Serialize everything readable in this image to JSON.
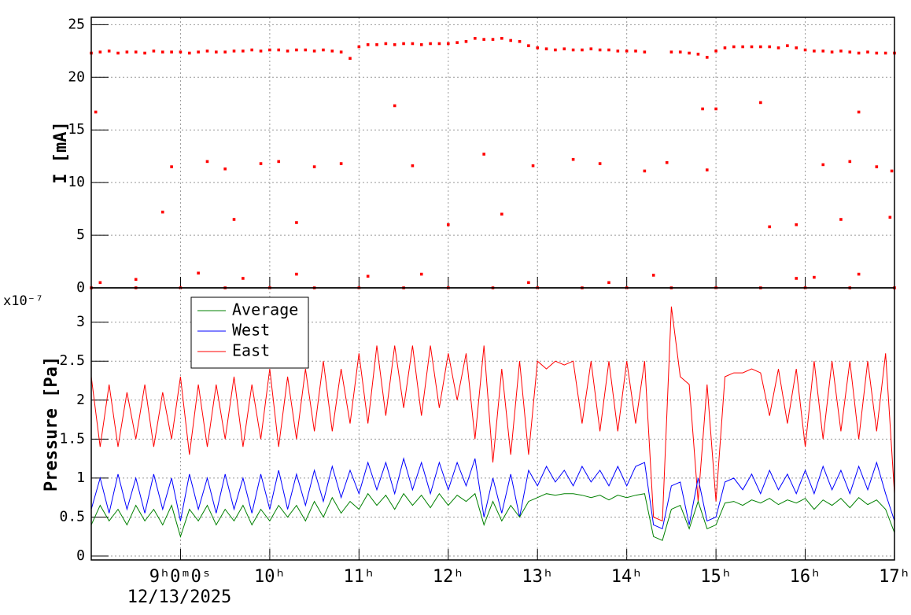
{
  "chart_data": [
    {
      "type": "scatter",
      "ylabel": "I [mA]",
      "color": "#ff0000",
      "xlim": [
        8,
        17
      ],
      "ylim": [
        0,
        25.7
      ],
      "yticks": [
        0,
        5,
        10,
        15,
        20,
        25
      ],
      "grid": true,
      "x": [
        8,
        8.1,
        8.2,
        8.3,
        8.4,
        8.5,
        8.6,
        8.7,
        8.8,
        8.9,
        9,
        9.1,
        9.2,
        9.3,
        9.4,
        9.5,
        9.6,
        9.7,
        9.8,
        9.9,
        10,
        10.1,
        10.2,
        10.3,
        10.4,
        10.5,
        10.6,
        10.7,
        10.8,
        10.9,
        11,
        11.1,
        11.2,
        11.3,
        11.4,
        11.5,
        11.6,
        11.7,
        11.8,
        11.9,
        12,
        12.1,
        12.2,
        12.3,
        12.4,
        12.5,
        12.6,
        12.7,
        12.8,
        12.9,
        13,
        13.1,
        13.2,
        13.3,
        13.4,
        13.5,
        13.6,
        13.7,
        13.8,
        13.9,
        14,
        14.1,
        14.2,
        14.5,
        14.6,
        14.7,
        14.8,
        14.9,
        15,
        15.1,
        15.2,
        15.3,
        15.4,
        15.5,
        15.6,
        15.7,
        15.8,
        15.9,
        16,
        16.1,
        16.2,
        16.3,
        16.4,
        16.5,
        16.6,
        16.7,
        16.8,
        16.9,
        17,
        8.05,
        8.8,
        8.9,
        9.3,
        9.5,
        9.6,
        9.9,
        10.1,
        10.3,
        10.5,
        10.8,
        11.4,
        11.6,
        12,
        12.4,
        12.6,
        12.95,
        13.4,
        13.7,
        14.2,
        14.45,
        14.85,
        14.9,
        15,
        15.5,
        15.6,
        15.9,
        16.2,
        16.4,
        16.5,
        16.6,
        16.8,
        16.95,
        16.97,
        8.1,
        8.5,
        9.2,
        9.7,
        10.3,
        11.1,
        11.7,
        12.9,
        13.8,
        14.3,
        15.9,
        16.1,
        16.6,
        8,
        8.5,
        9,
        9.5,
        10,
        10.5,
        11,
        11.5,
        12,
        12.5,
        13,
        13.5,
        14,
        14.5,
        15,
        15.5,
        16,
        16.5,
        17
      ],
      "values": [
        22.3,
        22.4,
        22.5,
        22.3,
        22.4,
        22.4,
        22.3,
        22.5,
        22.4,
        22.4,
        22.4,
        22.3,
        22.4,
        22.5,
        22.4,
        22.4,
        22.5,
        22.5,
        22.6,
        22.5,
        22.6,
        22.6,
        22.5,
        22.6,
        22.6,
        22.5,
        22.6,
        22.5,
        22.4,
        21.8,
        22.9,
        23.1,
        23.1,
        23.2,
        23.1,
        23.2,
        23.2,
        23.1,
        23.2,
        23.2,
        23.2,
        23.3,
        23.4,
        23.7,
        23.6,
        23.6,
        23.7,
        23.5,
        23.4,
        23.0,
        22.8,
        22.7,
        22.6,
        22.7,
        22.6,
        22.6,
        22.7,
        22.6,
        22.6,
        22.5,
        22.5,
        22.5,
        22.4,
        22.4,
        22.4,
        22.3,
        22.2,
        21.9,
        22.5,
        22.8,
        22.9,
        22.9,
        22.9,
        22.9,
        22.9,
        22.8,
        23.0,
        22.8,
        22.6,
        22.5,
        22.5,
        22.4,
        22.5,
        22.4,
        22.3,
        22.4,
        22.3,
        22.3,
        22.3,
        16.7,
        7.2,
        11.5,
        12,
        11.3,
        6.5,
        11.8,
        12,
        6.2,
        11.5,
        11.8,
        17.3,
        11.6,
        6,
        12.7,
        7,
        11.6,
        12.2,
        11.8,
        11.1,
        11.9,
        17,
        11.2,
        17,
        17.6,
        5.8,
        6,
        11.7,
        6.5,
        12,
        16.7,
        11.5,
        6.7,
        11.1,
        0.5,
        0.8,
        1.4,
        0.9,
        1.3,
        1.1,
        1.3,
        0.5,
        0.5,
        1.2,
        0.9,
        1,
        1.3,
        0,
        0,
        0,
        0,
        0,
        0,
        0,
        0,
        0,
        0,
        0,
        0,
        0,
        0,
        0,
        0,
        0,
        0,
        0
      ]
    },
    {
      "type": "line",
      "ylabel": "Pressure [Pa]",
      "y_exponent_label": "x10⁻⁷",
      "x_date_label": "12/13/2025",
      "xlim": [
        8,
        17
      ],
      "xticks": [
        {
          "value": 9,
          "label": "9ʰ0ᵐ0ˢ"
        },
        {
          "value": 10,
          "label": "10ʰ"
        },
        {
          "value": 11,
          "label": "11ʰ"
        },
        {
          "value": 12,
          "label": "12ʰ"
        },
        {
          "value": 13,
          "label": "13ʰ"
        },
        {
          "value": 14,
          "label": "14ʰ"
        },
        {
          "value": 15,
          "label": "15ʰ"
        },
        {
          "value": 16,
          "label": "16ʰ"
        },
        {
          "value": 17,
          "label": "17ʰ"
        }
      ],
      "ylim": [
        -0.05,
        3.44
      ],
      "yticks": [
        0,
        0.5,
        1,
        1.5,
        2,
        2.5,
        3
      ],
      "grid": true,
      "legend": "top-left",
      "x": [
        8,
        8.1,
        8.2,
        8.3,
        8.4,
        8.5,
        8.6,
        8.7,
        8.8,
        8.9,
        9,
        9.1,
        9.2,
        9.3,
        9.4,
        9.5,
        9.6,
        9.7,
        9.8,
        9.9,
        10,
        10.1,
        10.2,
        10.3,
        10.4,
        10.5,
        10.6,
        10.7,
        10.8,
        10.9,
        11,
        11.1,
        11.2,
        11.3,
        11.4,
        11.5,
        11.6,
        11.7,
        11.8,
        11.9,
        12,
        12.1,
        12.2,
        12.3,
        12.4,
        12.5,
        12.6,
        12.7,
        12.8,
        12.9,
        13,
        13.1,
        13.2,
        13.3,
        13.4,
        13.5,
        13.6,
        13.7,
        13.8,
        13.9,
        14,
        14.1,
        14.2,
        14.3,
        14.4,
        14.5,
        14.6,
        14.7,
        14.8,
        14.9,
        15,
        15.1,
        15.2,
        15.3,
        15.4,
        15.5,
        15.6,
        15.7,
        15.8,
        15.9,
        16,
        16.1,
        16.2,
        16.3,
        16.4,
        16.5,
        16.6,
        16.7,
        16.8,
        16.9,
        17
      ],
      "series": [
        {
          "name": "Average",
          "color": "#008000",
          "values": [
            0.4,
            0.65,
            0.45,
            0.6,
            0.4,
            0.65,
            0.45,
            0.6,
            0.4,
            0.65,
            0.25,
            0.6,
            0.45,
            0.65,
            0.4,
            0.6,
            0.45,
            0.65,
            0.4,
            0.6,
            0.45,
            0.65,
            0.5,
            0.65,
            0.45,
            0.7,
            0.5,
            0.75,
            0.55,
            0.7,
            0.6,
            0.8,
            0.65,
            0.78,
            0.6,
            0.8,
            0.65,
            0.78,
            0.62,
            0.8,
            0.65,
            0.78,
            0.7,
            0.8,
            0.4,
            0.7,
            0.45,
            0.65,
            0.5,
            0.7,
            0.75,
            0.8,
            0.78,
            0.8,
            0.8,
            0.78,
            0.75,
            0.78,
            0.72,
            0.78,
            0.75,
            0.78,
            0.8,
            0.25,
            0.2,
            0.6,
            0.65,
            0.35,
            0.7,
            0.35,
            0.4,
            0.68,
            0.7,
            0.65,
            0.72,
            0.68,
            0.74,
            0.66,
            0.72,
            0.68,
            0.74,
            0.6,
            0.72,
            0.65,
            0.74,
            0.62,
            0.75,
            0.66,
            0.72,
            0.6,
            0.3
          ]
        },
        {
          "name": "West",
          "color": "#0000ff",
          "values": [
            0.6,
            1.0,
            0.55,
            1.05,
            0.6,
            1.0,
            0.55,
            1.05,
            0.6,
            1.0,
            0.45,
            1.05,
            0.6,
            1.0,
            0.55,
            1.05,
            0.6,
            1.0,
            0.55,
            1.05,
            0.6,
            1.1,
            0.6,
            1.05,
            0.65,
            1.1,
            0.7,
            1.15,
            0.75,
            1.1,
            0.8,
            1.2,
            0.85,
            1.2,
            0.8,
            1.25,
            0.85,
            1.2,
            0.8,
            1.2,
            0.85,
            1.2,
            0.9,
            1.25,
            0.5,
            1.0,
            0.55,
            1.05,
            0.5,
            1.1,
            0.9,
            1.15,
            0.95,
            1.1,
            0.9,
            1.15,
            0.95,
            1.1,
            0.9,
            1.15,
            0.9,
            1.15,
            1.2,
            0.4,
            0.35,
            0.9,
            0.95,
            0.4,
            1.0,
            0.45,
            0.5,
            0.95,
            1.0,
            0.85,
            1.05,
            0.8,
            1.1,
            0.85,
            1.05,
            0.8,
            1.1,
            0.8,
            1.15,
            0.85,
            1.1,
            0.8,
            1.15,
            0.85,
            1.2,
            0.8,
            0.45
          ]
        },
        {
          "name": "East",
          "color": "#ff0000",
          "values": [
            2.3,
            1.4,
            2.2,
            1.4,
            2.1,
            1.5,
            2.2,
            1.4,
            2.1,
            1.5,
            2.3,
            1.3,
            2.2,
            1.4,
            2.2,
            1.5,
            2.3,
            1.4,
            2.2,
            1.5,
            2.4,
            1.4,
            2.3,
            1.5,
            2.4,
            1.6,
            2.5,
            1.6,
            2.4,
            1.7,
            2.6,
            1.7,
            2.7,
            1.8,
            2.7,
            1.9,
            2.7,
            1.8,
            2.7,
            1.9,
            2.6,
            2.0,
            2.6,
            1.5,
            2.7,
            1.2,
            2.4,
            1.3,
            2.5,
            1.3,
            2.5,
            2.4,
            2.5,
            2.45,
            2.5,
            1.7,
            2.5,
            1.6,
            2.5,
            1.6,
            2.5,
            1.7,
            2.5,
            0.5,
            0.45,
            3.2,
            2.3,
            2.2,
            0.7,
            2.2,
            0.7,
            2.3,
            2.35,
            2.35,
            2.4,
            2.35,
            1.8,
            2.4,
            1.7,
            2.4,
            1.4,
            2.5,
            1.5,
            2.5,
            1.6,
            2.5,
            1.5,
            2.5,
            1.6,
            2.6,
            0.8
          ]
        }
      ]
    }
  ]
}
